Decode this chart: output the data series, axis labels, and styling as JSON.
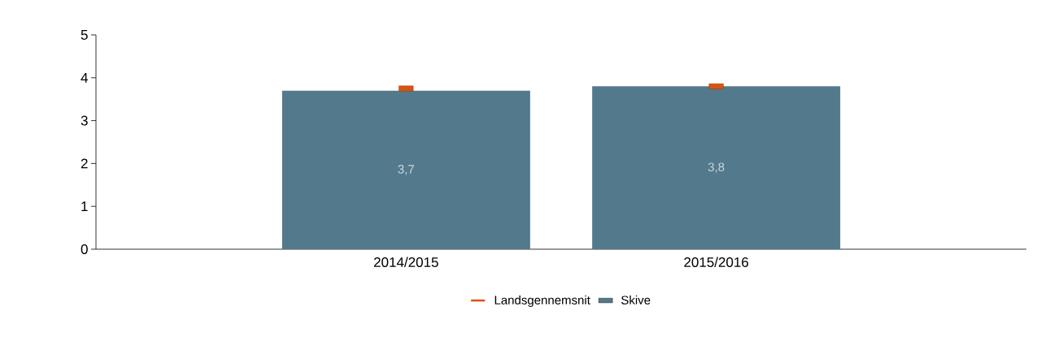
{
  "chart_data": {
    "type": "bar",
    "categories": [
      "2014/2015",
      "2015/2016"
    ],
    "series": [
      {
        "name": "Landsgennemsnit",
        "type": "scatter",
        "color": "#d9540f",
        "values": [
          3.75,
          3.8
        ]
      },
      {
        "name": "Skive",
        "color": "#537a8c",
        "values": [
          3.7,
          3.8
        ],
        "value_labels": [
          "3,7",
          "3,8"
        ]
      }
    ],
    "ylim": [
      0,
      5
    ],
    "yticks": [
      0,
      1,
      2,
      3,
      4,
      5
    ],
    "legend": "bottom",
    "grid": false,
    "marker": "square"
  }
}
